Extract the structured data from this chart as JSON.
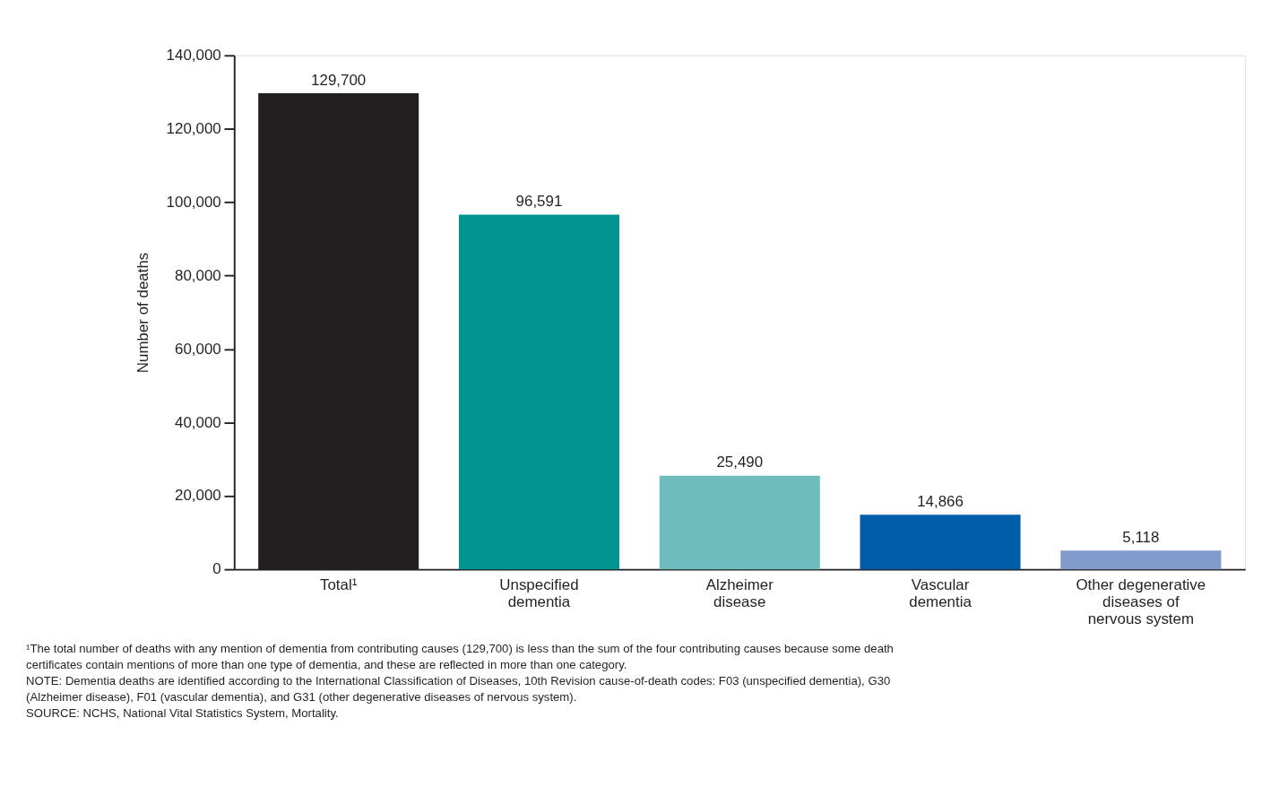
{
  "chart_data": {
    "type": "bar",
    "ylabel": "Number of deaths",
    "categories": [
      "Total¹",
      "Unspecified\ndementia",
      "Alzheimer\ndisease",
      "Vascular\ndementia",
      "Other degenerative\ndiseases of\nnervous system"
    ],
    "values": [
      129700,
      96591,
      25490,
      14866,
      5118
    ],
    "value_labels": [
      "129,700",
      "96,591",
      "25,490",
      "14,866",
      "5,118"
    ],
    "colors": [
      "#231f20",
      "#009490",
      "#6fbcbd",
      "#005daa",
      "#7f9acb"
    ],
    "ylim": [
      0,
      140000
    ],
    "yticks": [
      {
        "value": 0,
        "label": "0"
      },
      {
        "value": 20000,
        "label": "20,000"
      },
      {
        "value": 40000,
        "label": "40,000"
      },
      {
        "value": 60000,
        "label": "60,000"
      },
      {
        "value": 80000,
        "label": "80,000"
      },
      {
        "value": 100000,
        "label": "100,000"
      },
      {
        "value": 120000,
        "label": "120,000"
      },
      {
        "value": 140000,
        "label": "140,000"
      }
    ],
    "grid": false,
    "annotations": [
      "¹The total number of deaths with any mention of dementia from contributing causes (129,700) is less than the sum of the four contributing causes because some death certificates contain mentions of more than one type of dementia, and these are reflected in more than one category.",
      "NOTE: Dementia deaths are identified according to the International Classification of Diseases, 10th Revision cause-of-death codes: F03 (unspecified dementia), G30 (Alzheimer disease), F01 (vascular dementia), and G31 (other degenerative diseases of nervous system).",
      "SOURCE: NCHS, National Vital Statistics System, Mortality."
    ]
  }
}
